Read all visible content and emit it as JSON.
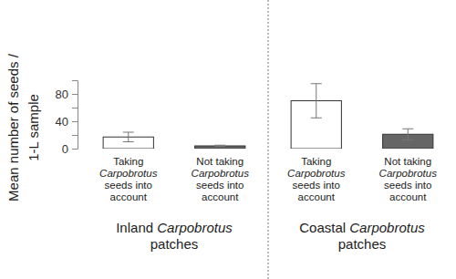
{
  "chart_data": {
    "type": "bar",
    "ylabel": "Mean number of seeds /\n1-L sample",
    "categories": [
      "Taking\nCarpobrotus\nseeds into\naccount",
      "Not taking\nCarpobrotus\nseeds into\naccount",
      "Taking\nCarpobrotus\nseeds into\naccount",
      "Not taking\nCarpobrotus\nseeds into\naccount"
    ],
    "values": [
      17,
      4,
      70,
      21
    ],
    "errors": [
      7,
      1,
      25,
      8
    ],
    "colors": [
      "#ffffff",
      "#666666",
      "#ffffff",
      "#666666"
    ],
    "group_labels": [
      "Inland Carpobrotus\npatches",
      "Coastal Carpobrotus\npatches"
    ],
    "ylim": [
      0,
      100
    ],
    "yticks": [
      0,
      {
        "value": 20,
        "label": null
      },
      40,
      {
        "value": 60,
        "label": null
      },
      80,
      {
        "value": 100,
        "label": null
      }
    ]
  }
}
